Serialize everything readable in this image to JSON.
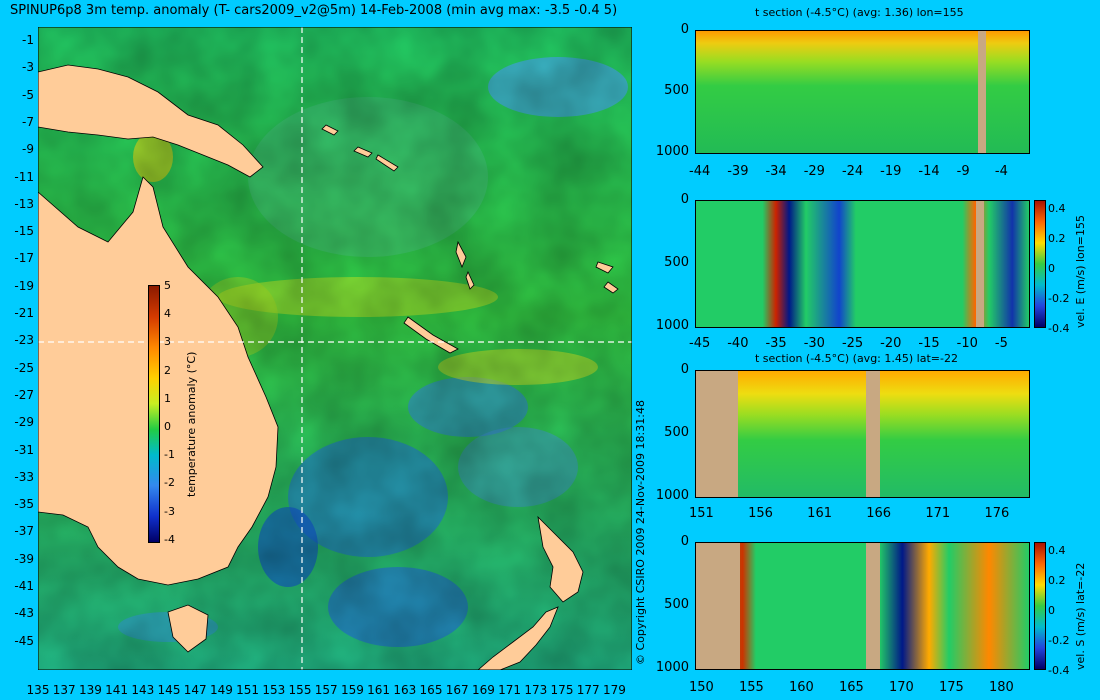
{
  "title": "SPINUP6p8 3m temp. anomaly (T- cars2009_v2@5m) 14-Feb-2008 (min avg max: -3.5 -0.4 5)",
  "copyright": "© Copyright CSIRO 2009   24-Nov-2009 18:31:48",
  "map": {
    "lat_labels": [
      "-1",
      "-3",
      "-5",
      "-7",
      "-9",
      "-11",
      "-13",
      "-15",
      "-17",
      "-19",
      "-21",
      "-23",
      "-25",
      "-27",
      "-29",
      "-31",
      "-33",
      "-35",
      "-37",
      "-39",
      "-41",
      "-43",
      "-45"
    ],
    "lon_labels": [
      "135",
      "137",
      "139",
      "141",
      "143",
      "145",
      "147",
      "149",
      "151",
      "153",
      "155",
      "157",
      "159",
      "161",
      "163",
      "165",
      "167",
      "169",
      "171",
      "173",
      "175",
      "177",
      "179"
    ],
    "colorbar": {
      "label": "temperature anomaly (°C)",
      "ticks": [
        "5",
        "4",
        "3",
        "2",
        "1",
        "0",
        "-1",
        "-2",
        "-3",
        "-4"
      ]
    }
  },
  "sections": [
    {
      "title": "t section (-4.5°C) (avg: 1.36) lon=155",
      "x_ticks": [
        "-44",
        "-39",
        "-34",
        "-29",
        "-24",
        "-19",
        "-14",
        "-9",
        "-4"
      ],
      "depth_ticks": [
        "0",
        "500",
        "1000"
      ],
      "colorbar": null
    },
    {
      "title": "",
      "x_ticks": [
        "-45",
        "-40",
        "-35",
        "-30",
        "-25",
        "-20",
        "-15",
        "-10",
        "-5"
      ],
      "depth_ticks": [
        "0",
        "500",
        "1000"
      ],
      "colorbar": {
        "label": "vel. E (m/s) lon=155",
        "ticks": [
          "0.4",
          "0.2",
          "0",
          "-0.2",
          "-0.4"
        ]
      }
    },
    {
      "title": "t section (-4.5°C) (avg: 1.45) lat=-22",
      "x_ticks": [
        "151",
        "156",
        "161",
        "166",
        "171",
        "176"
      ],
      "depth_ticks": [
        "0",
        "500",
        "1000"
      ],
      "colorbar": null
    },
    {
      "title": "",
      "x_ticks": [
        "150",
        "155",
        "160",
        "165",
        "170",
        "175",
        "180"
      ],
      "depth_ticks": [
        "0",
        "500",
        "1000"
      ],
      "colorbar": {
        "label": "vel. S (m/s) lat=-22",
        "ticks": [
          "0.4",
          "0.2",
          "0",
          "-0.2",
          "-0.4"
        ]
      }
    }
  ]
}
